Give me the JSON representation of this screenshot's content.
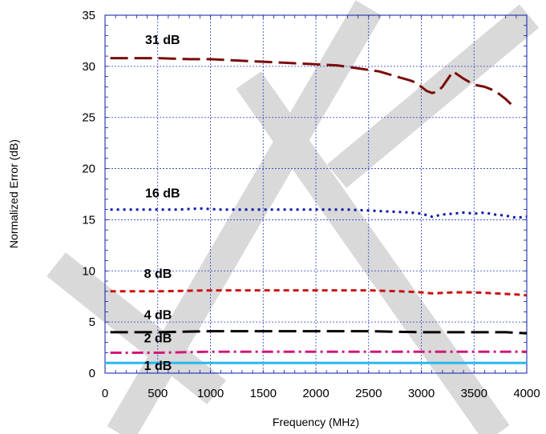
{
  "chart_data": {
    "type": "line",
    "xlabel": "Frequency (MHz)",
    "ylabel": "Normalized Error (dB)",
    "xlim": [
      0,
      4000
    ],
    "ylim": [
      0,
      35
    ],
    "x_ticks": [
      "0",
      "500",
      "1000",
      "1500",
      "2000",
      "2500",
      "3000",
      "3500",
      "4000"
    ],
    "y_ticks": [
      "0",
      "5",
      "10",
      "15",
      "20",
      "25",
      "30",
      "35"
    ],
    "grid": true,
    "watermark": "watermark-stripes",
    "series": [
      {
        "name": "31 dB",
        "color": "#7b0a0a",
        "dash": "long-dash",
        "x": [
          50,
          300,
          500,
          800,
          1000,
          1200,
          1400,
          1600,
          1800,
          2000,
          2200,
          2400,
          2600,
          2700,
          2800,
          2900,
          2950,
          3000,
          3050,
          3100,
          3150,
          3200,
          3300,
          3400,
          3500,
          3600,
          3700,
          3750,
          3800,
          3850
        ],
        "y": [
          30.8,
          30.8,
          30.8,
          30.7,
          30.7,
          30.6,
          30.5,
          30.4,
          30.3,
          30.2,
          30.1,
          29.8,
          29.5,
          29.2,
          28.9,
          28.6,
          28.4,
          28.0,
          27.6,
          27.4,
          27.5,
          28.0,
          29.5,
          28.8,
          28.2,
          28.0,
          27.6,
          27.2,
          26.8,
          26.3
        ]
      },
      {
        "name": "16 dB",
        "color": "#0a1aa8",
        "dash": "dot",
        "x": [
          50,
          300,
          500,
          700,
          900,
          1100,
          1300,
          1500,
          1700,
          1900,
          2100,
          2300,
          2500,
          2700,
          2900,
          3000,
          3100,
          3200,
          3300,
          3400,
          3500,
          3600,
          3700,
          3800,
          3900,
          4000
        ],
        "y": [
          16.0,
          16.0,
          16.0,
          16.0,
          16.1,
          16.0,
          16.0,
          16.0,
          16.0,
          16.0,
          16.0,
          16.0,
          15.9,
          15.8,
          15.7,
          15.6,
          15.3,
          15.5,
          15.6,
          15.7,
          15.6,
          15.7,
          15.5,
          15.4,
          15.2,
          15.3
        ]
      },
      {
        "name": "8 dB",
        "color": "#cc1010",
        "dash": "dash",
        "x": [
          50,
          500,
          1000,
          1500,
          2000,
          2500,
          2800,
          3000,
          3100,
          3300,
          3500,
          3700,
          3900,
          4000
        ],
        "y": [
          8.0,
          8.0,
          8.1,
          8.1,
          8.1,
          8.1,
          8.0,
          7.9,
          7.8,
          7.9,
          7.9,
          7.8,
          7.7,
          7.6
        ]
      },
      {
        "name": "4 dB",
        "color": "#000000",
        "dash": "long-dash",
        "x": [
          50,
          500,
          1000,
          1500,
          2000,
          2500,
          3000,
          3500,
          3800,
          4000
        ],
        "y": [
          4.0,
          4.0,
          4.1,
          4.1,
          4.1,
          4.1,
          4.0,
          4.0,
          4.0,
          3.9
        ]
      },
      {
        "name": "2 dB",
        "color": "#d0187a",
        "dash": "dash-dot",
        "x": [
          50,
          500,
          1000,
          1500,
          2000,
          2500,
          3000,
          3500,
          4000
        ],
        "y": [
          2.0,
          2.0,
          2.1,
          2.1,
          2.1,
          2.1,
          2.1,
          2.1,
          2.1
        ]
      },
      {
        "name": "1 dB",
        "color": "#28b8f0",
        "dash": "solid",
        "x": [
          0,
          500,
          1000,
          1500,
          2000,
          2500,
          3000,
          3500,
          4000
        ],
        "y": [
          1.0,
          1.0,
          1.0,
          1.0,
          1.0,
          1.0,
          1.0,
          1.0,
          1.0
        ]
      }
    ],
    "annotations": [
      {
        "text": "31 dB",
        "x": 380,
        "y": 32.2
      },
      {
        "text": "16 dB",
        "x": 380,
        "y": 17.2
      },
      {
        "text": "8 dB",
        "x": 370,
        "y": 9.3
      },
      {
        "text": "4 dB",
        "x": 370,
        "y": 5.3
      },
      {
        "text": "2 dB",
        "x": 370,
        "y": 3.0
      },
      {
        "text": "1 dB",
        "x": 370,
        "y": 0.3
      }
    ]
  }
}
